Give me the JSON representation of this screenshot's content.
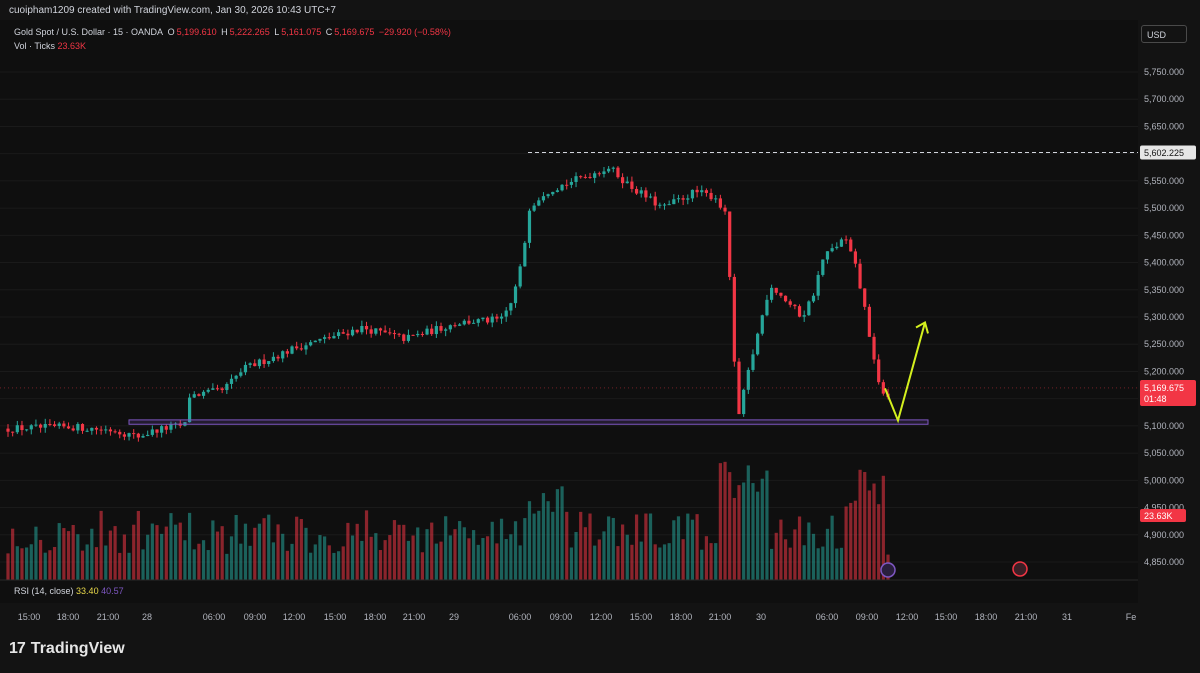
{
  "header": {
    "credit": "cuoipham1209 created with TradingView.com, Jan 30, 2026 10:43 UTC+7",
    "symbol": "Gold Spot / U.S. Dollar · 15 · OANDA",
    "o_label": "O",
    "o_value": "5,199.610",
    "h_label": "H",
    "h_value": "5,222.265",
    "l_label": "L",
    "l_value": "5,161.075",
    "c_label": "C",
    "c_value": "5,169.675",
    "change": "−29.920 (−0.58%)",
    "vol_label": "Vol · Ticks",
    "vol_value": "23.63K",
    "currency": "USD"
  },
  "rsi": {
    "label": "RSI (14, close)",
    "value1": "33.40",
    "value2": "40.57"
  },
  "footer": {
    "brand": "TradingView"
  },
  "colors": {
    "up": "#26a69a",
    "down": "#f23645",
    "zone": "#7e57c2",
    "arrow": "#d4f01e",
    "background": "#0f0f0f"
  },
  "chart_data": {
    "type": "candlestick",
    "y_ticks": [
      "5,750.000",
      "5,700.000",
      "5,650.000",
      "5,600.000",
      "5,550.000",
      "5,500.000",
      "5,450.000",
      "5,400.000",
      "5,350.000",
      "5,300.000",
      "5,250.000",
      "5,200.000",
      "5,150.000",
      "5,100.000",
      "5,050.000",
      "5,000.000",
      "4,950.000",
      "4,900.000",
      "4,850.000"
    ],
    "y_tick_values": [
      5750,
      5700,
      5650,
      5600,
      5550,
      5500,
      5450,
      5400,
      5350,
      5300,
      5250,
      5200,
      5150,
      5100,
      5050,
      5000,
      4950,
      4900,
      4850
    ],
    "ylim": [
      4830,
      5790
    ],
    "x_ticks": [
      "15:00",
      "18:00",
      "21:00",
      "28",
      "06:00",
      "09:00",
      "12:00",
      "15:00",
      "18:00",
      "21:00",
      "29",
      "06:00",
      "09:00",
      "12:00",
      "15:00",
      "18:00",
      "21:00",
      "30",
      "06:00",
      "09:00",
      "12:00",
      "15:00",
      "18:00",
      "21:00",
      "31",
      "Fe"
    ],
    "price_label": "5,169.675",
    "price_value": 5169.675,
    "countdown": "01:48",
    "high_label": "5,602.225",
    "high_value": 5602.225,
    "volume_label": "23.63K",
    "support_zone": [
      5103,
      5111
    ],
    "close_path": [
      [
        0,
        5095
      ],
      [
        0.06,
        5098
      ],
      [
        0.1,
        5092
      ],
      [
        0.12,
        5080
      ],
      [
        0.14,
        5093
      ],
      [
        0.165,
        5102
      ],
      [
        0.168,
        5155
      ],
      [
        0.2,
        5165
      ],
      [
        0.22,
        5205
      ],
      [
        0.27,
        5245
      ],
      [
        0.33,
        5280
      ],
      [
        0.37,
        5260
      ],
      [
        0.42,
        5290
      ],
      [
        0.46,
        5295
      ],
      [
        0.47,
        5330
      ],
      [
        0.48,
        5410
      ],
      [
        0.485,
        5500
      ],
      [
        0.5,
        5530
      ],
      [
        0.54,
        5560
      ],
      [
        0.56,
        5575
      ],
      [
        0.58,
        5540
      ],
      [
        0.61,
        5500
      ],
      [
        0.64,
        5530
      ],
      [
        0.66,
        5520
      ],
      [
        0.67,
        5480
      ],
      [
        0.675,
        5270
      ],
      [
        0.68,
        5110
      ],
      [
        0.69,
        5200
      ],
      [
        0.71,
        5360
      ],
      [
        0.74,
        5300
      ],
      [
        0.75,
        5340
      ],
      [
        0.76,
        5410
      ],
      [
        0.78,
        5445
      ],
      [
        0.79,
        5390
      ],
      [
        0.8,
        5300
      ],
      [
        0.81,
        5180
      ],
      [
        0.82,
        5150
      ]
    ],
    "arrow_points": [
      [
        5169,
        0
      ],
      [
        5110,
        1
      ],
      [
        5290,
        2
      ]
    ]
  }
}
